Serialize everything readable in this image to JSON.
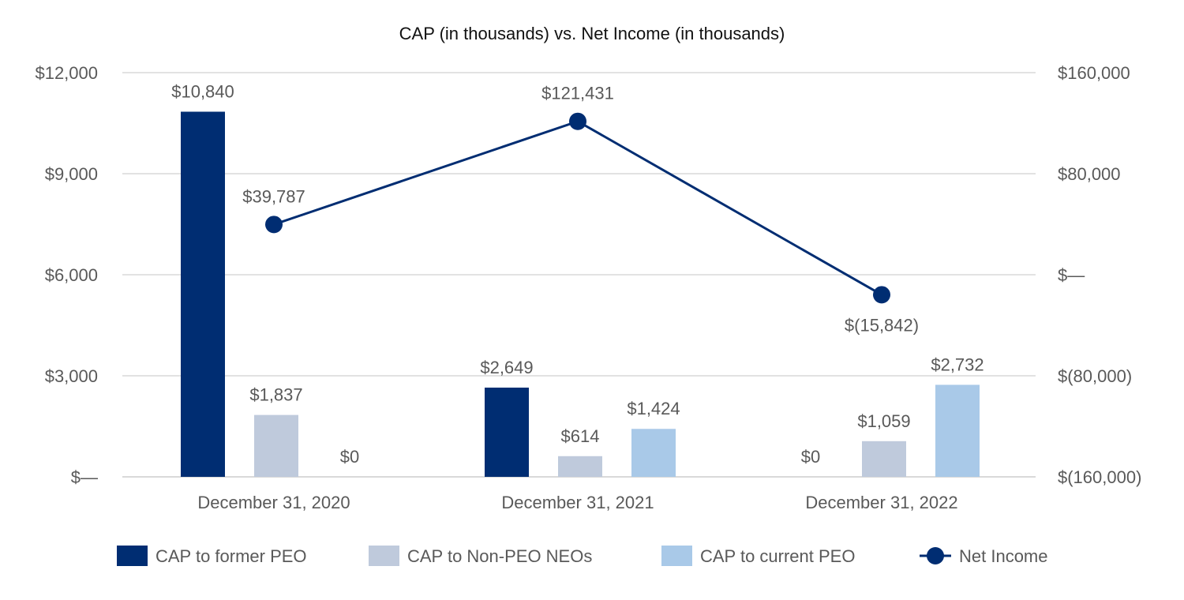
{
  "chart_data": {
    "type": "bar",
    "title": "CAP (in thousands) vs. Net Income (in thousands)",
    "categories": [
      "December 31, 2020",
      "December 31, 2021",
      "December 31, 2022"
    ],
    "y_left": {
      "min": 0,
      "max": 12000,
      "ticks": [
        0,
        3000,
        6000,
        9000,
        12000
      ],
      "tick_labels": [
        "$—",
        "$3,000",
        "$6,000",
        "$9,000",
        "$12,000"
      ]
    },
    "y_right": {
      "min": -160000,
      "max": 160000,
      "ticks": [
        -160000,
        -80000,
        0,
        80000,
        160000
      ],
      "tick_labels": [
        "$(160,000)",
        "$(80,000)",
        "$—",
        "$80,000",
        "$160,000"
      ]
    },
    "series": [
      {
        "name": "CAP to former PEO",
        "kind": "bar",
        "axis": "left",
        "color": "#002d72",
        "values": [
          10840,
          2649,
          0
        ],
        "labels": [
          "$10,840",
          "$2,649",
          "$0"
        ]
      },
      {
        "name": "CAP to Non-PEO NEOs",
        "kind": "bar",
        "axis": "left",
        "color": "#bfcadc",
        "values": [
          1837,
          614,
          1059
        ],
        "labels": [
          "$1,837",
          "$614",
          "$1,059"
        ]
      },
      {
        "name": "CAP to current PEO",
        "kind": "bar",
        "axis": "left",
        "color": "#a9c9e8",
        "values": [
          0,
          1424,
          2732
        ],
        "labels": [
          "$0",
          "$1,424",
          "$2,732"
        ]
      },
      {
        "name": "Net Income",
        "kind": "line",
        "axis": "right",
        "color": "#002d72",
        "values": [
          39787,
          121431,
          -15842
        ],
        "labels": [
          "$39,787",
          "$121,431",
          "$(15,842)"
        ]
      }
    ],
    "legend_position": "bottom",
    "grid": true
  }
}
